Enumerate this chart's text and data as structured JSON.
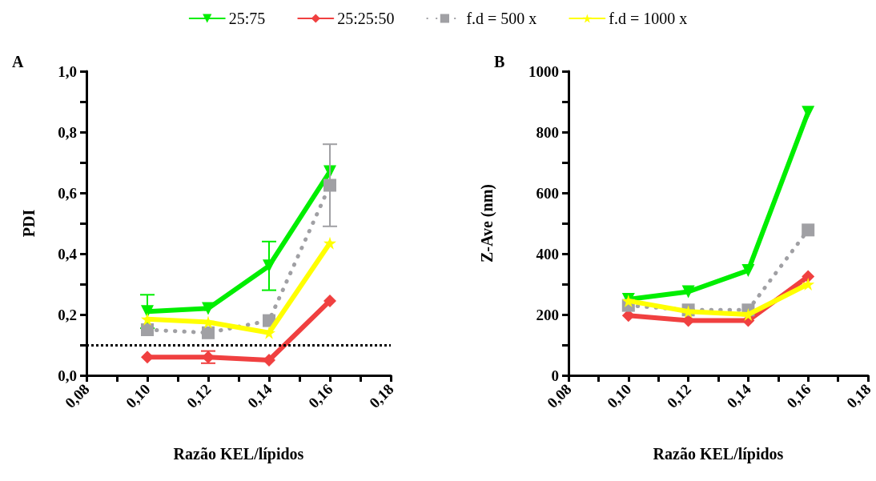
{
  "chart_data": [
    {
      "type": "line",
      "title": "A",
      "xlabel": "Razão KEL/lípidos",
      "ylabel": "PDI",
      "legend": "top",
      "x": [
        0.1,
        0.12,
        0.14,
        0.16
      ],
      "xlim": [
        0.08,
        0.18
      ],
      "xticks": [
        {
          "value": 0.08,
          "label": "0,08"
        },
        {
          "value": 0.09,
          "label": null
        },
        {
          "value": 0.1,
          "label": "0,10"
        },
        {
          "value": 0.11,
          "label": null
        },
        {
          "value": 0.12,
          "label": "0,12"
        },
        {
          "value": 0.13,
          "label": null
        },
        {
          "value": 0.14,
          "label": "0,14"
        },
        {
          "value": 0.15,
          "label": null
        },
        {
          "value": 0.16,
          "label": "0,16"
        },
        {
          "value": 0.17,
          "label": null
        },
        {
          "value": 0.18,
          "label": "0,18"
        }
      ],
      "ylim": [
        0,
        1
      ],
      "yticks": [
        {
          "value": 0,
          "label": "0,0"
        },
        {
          "value": 0.1,
          "label": null
        },
        {
          "value": 0.2,
          "label": "0,2"
        },
        {
          "value": 0.3,
          "label": null
        },
        {
          "value": 0.4,
          "label": "0,4"
        },
        {
          "value": 0.5,
          "label": null
        },
        {
          "value": 0.6,
          "label": "0,6"
        },
        {
          "value": 0.7,
          "label": null
        },
        {
          "value": 0.8,
          "label": "0,8"
        },
        {
          "value": 0.9,
          "label": null
        },
        {
          "value": 1,
          "label": "1,0"
        }
      ],
      "grid": false,
      "ref_lines": [
        {
          "axis": "y",
          "value": 0.1,
          "color": "#000000",
          "line_style": "dotted"
        }
      ],
      "series": [
        {
          "name": "25:75",
          "color": "#00ee00",
          "marker": "triangle",
          "line_style": "solid",
          "values": [
            0.21,
            0.22,
            0.36,
            0.67
          ],
          "errors": [
            0.055,
            null,
            0.08,
            null
          ]
        },
        {
          "name": "25:25:50",
          "color": "#f04040",
          "marker": "diamond",
          "line_style": "solid",
          "values": [
            0.06,
            0.06,
            0.05,
            0.245
          ],
          "errors": [
            null,
            0.02,
            null,
            null
          ]
        },
        {
          "name": "f.d = 500 x",
          "color": "#a0a0a4",
          "marker": "square",
          "line_style": "dotted",
          "values": [
            0.15,
            0.14,
            0.18,
            0.625
          ],
          "errors": [
            null,
            null,
            null,
            0.135
          ]
        },
        {
          "name": "f.d = 1000 x",
          "color": "#ffff00",
          "marker": "star",
          "line_style": "solid",
          "values": [
            0.185,
            0.175,
            0.14,
            0.435
          ]
        }
      ]
    },
    {
      "type": "line",
      "title": "B",
      "xlabel": "Razão KEL/lípidos",
      "ylabel": "Z-Ave (nm)",
      "x": [
        0.1,
        0.12,
        0.14,
        0.16
      ],
      "xlim": [
        0.08,
        0.18
      ],
      "xticks": [
        {
          "value": 0.08,
          "label": "0,08"
        },
        {
          "value": 0.09,
          "label": null
        },
        {
          "value": 0.1,
          "label": "0,10"
        },
        {
          "value": 0.11,
          "label": null
        },
        {
          "value": 0.12,
          "label": "0,12"
        },
        {
          "value": 0.13,
          "label": null
        },
        {
          "value": 0.14,
          "label": "0,14"
        },
        {
          "value": 0.15,
          "label": null
        },
        {
          "value": 0.16,
          "label": "0,16"
        },
        {
          "value": 0.17,
          "label": null
        },
        {
          "value": 0.18,
          "label": "0,18"
        }
      ],
      "ylim": [
        0,
        1000
      ],
      "yticks": [
        0,
        {
          "value": 100,
          "label": null
        },
        200,
        {
          "value": 300,
          "label": null
        },
        400,
        {
          "value": 500,
          "label": null
        },
        600,
        {
          "value": 700,
          "label": null
        },
        800,
        {
          "value": 900,
          "label": null
        },
        1000
      ],
      "grid": false,
      "series": [
        {
          "color": "#00ee00",
          "marker": "triangle",
          "line_style": "solid",
          "values": [
            250,
            275,
            345,
            865
          ]
        },
        {
          "color": "#f04040",
          "marker": "diamond",
          "line_style": "solid",
          "values": [
            197,
            180,
            180,
            325
          ]
        },
        {
          "color": "#a0a0a4",
          "marker": "square",
          "line_style": "dotted",
          "values": [
            230,
            215,
            215,
            478
          ]
        },
        {
          "color": "#ffff00",
          "marker": "star",
          "line_style": "solid",
          "values": [
            245,
            210,
            200,
            300
          ]
        }
      ]
    }
  ]
}
